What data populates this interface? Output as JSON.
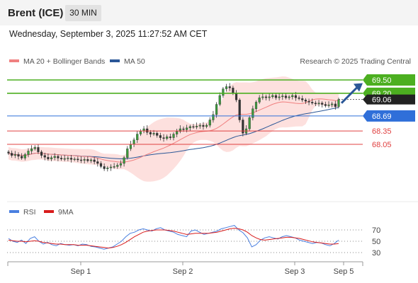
{
  "header": {
    "title": "Brent (ICE)",
    "timeframe": "30 MIN",
    "datetime": "Wednesday, September 3, 2025 11:27:52 AM CET"
  },
  "legend": {
    "ma20_label": "MA 20 + Bollinger Bands",
    "ma50_label": "MA 50",
    "credit": "Research © 2025 Trading Central",
    "ma20_color": "#f08080",
    "ma50_color": "#2b5797"
  },
  "chart_data": {
    "type": "line",
    "price_panel": {
      "current_price": "69.06",
      "levels": [
        {
          "label": "69.50",
          "value": 69.5,
          "kind": "target",
          "color": "#4caf20"
        },
        {
          "label": "69.20",
          "value": 69.2,
          "kind": "target",
          "color": "#4caf20"
        },
        {
          "label": "68.69",
          "value": 68.69,
          "kind": "pivot",
          "color": "#2f6fd9"
        },
        {
          "label": "68.35",
          "value": 68.35,
          "kind": "support",
          "color": "#e04040"
        },
        {
          "label": "68.05",
          "value": 68.05,
          "kind": "support",
          "color": "#e04040"
        }
      ],
      "close_series": [
        67.85,
        67.8,
        67.82,
        67.78,
        67.74,
        67.82,
        67.9,
        67.95,
        67.98,
        67.88,
        67.8,
        67.76,
        67.72,
        67.75,
        67.78,
        67.74,
        67.72,
        67.73,
        67.74,
        67.71,
        67.72,
        67.7,
        67.69,
        67.71,
        67.68,
        67.7,
        67.66,
        67.62,
        67.55,
        67.5,
        67.52,
        67.54,
        67.55,
        67.58,
        67.62,
        67.75,
        67.95,
        68.05,
        68.15,
        68.28,
        68.35,
        68.4,
        68.32,
        68.28,
        68.3,
        68.25,
        68.2,
        68.18,
        68.22,
        68.2,
        68.28,
        68.34,
        68.4,
        68.38,
        68.42,
        68.45,
        68.44,
        68.46,
        68.48,
        68.45,
        68.48,
        68.6,
        68.72,
        68.95,
        69.15,
        69.3,
        69.35,
        69.32,
        69.2,
        69.05,
        68.6,
        68.3,
        68.4,
        68.65,
        68.85,
        69.0,
        69.1,
        69.12,
        69.1,
        69.12,
        69.15,
        69.1,
        69.12,
        69.14,
        69.1,
        69.12,
        69.15,
        69.1,
        69.08,
        69.05,
        69.02,
        69.0,
        68.98,
        68.96,
        68.98,
        68.95,
        68.92,
        68.94,
        68.96,
        68.9,
        69.06
      ],
      "x_labels": [
        "Sep 1",
        "Sep 2",
        "Sep 3",
        "Sep 5"
      ]
    },
    "rsi_panel": {
      "legend_rsi": "RSI",
      "legend_ma": "9MA",
      "rsi_color": "#4a7fe0",
      "ma_color": "#d81c1c",
      "y_ticks": [
        "70",
        "50",
        "30"
      ],
      "rsi_series": [
        55,
        50,
        48,
        52,
        46,
        55,
        58,
        50,
        45,
        48,
        44,
        42,
        46,
        44,
        43,
        44,
        42,
        45,
        44,
        41,
        40,
        38,
        36,
        38,
        40,
        45,
        50,
        58,
        64,
        66,
        70,
        72,
        70,
        68,
        72,
        74,
        70,
        68,
        66,
        62,
        60,
        58,
        68,
        70,
        66,
        62,
        64,
        66,
        68,
        72,
        74,
        76,
        78,
        70,
        65,
        56,
        40,
        44,
        52,
        56,
        58,
        56,
        54,
        58,
        60,
        58,
        56,
        52,
        50,
        48,
        46,
        48,
        47,
        44,
        42,
        46,
        52
      ],
      "ma_series": [
        52,
        51,
        50,
        50,
        49,
        50,
        51,
        50,
        48,
        47,
        46,
        45,
        45,
        44,
        44,
        44,
        43,
        43,
        43,
        42,
        41,
        40,
        39,
        38,
        39,
        41,
        44,
        48,
        53,
        58,
        62,
        66,
        68,
        69,
        70,
        70,
        70,
        69,
        68,
        66,
        64,
        62,
        63,
        64,
        64,
        64,
        64,
        65,
        66,
        68,
        70,
        72,
        73,
        72,
        70,
        66,
        60,
        56,
        53,
        52,
        53,
        54,
        55,
        56,
        57,
        57,
        56,
        55,
        53,
        51,
        49,
        48,
        47,
        46,
        45,
        45,
        46
      ]
    }
  }
}
